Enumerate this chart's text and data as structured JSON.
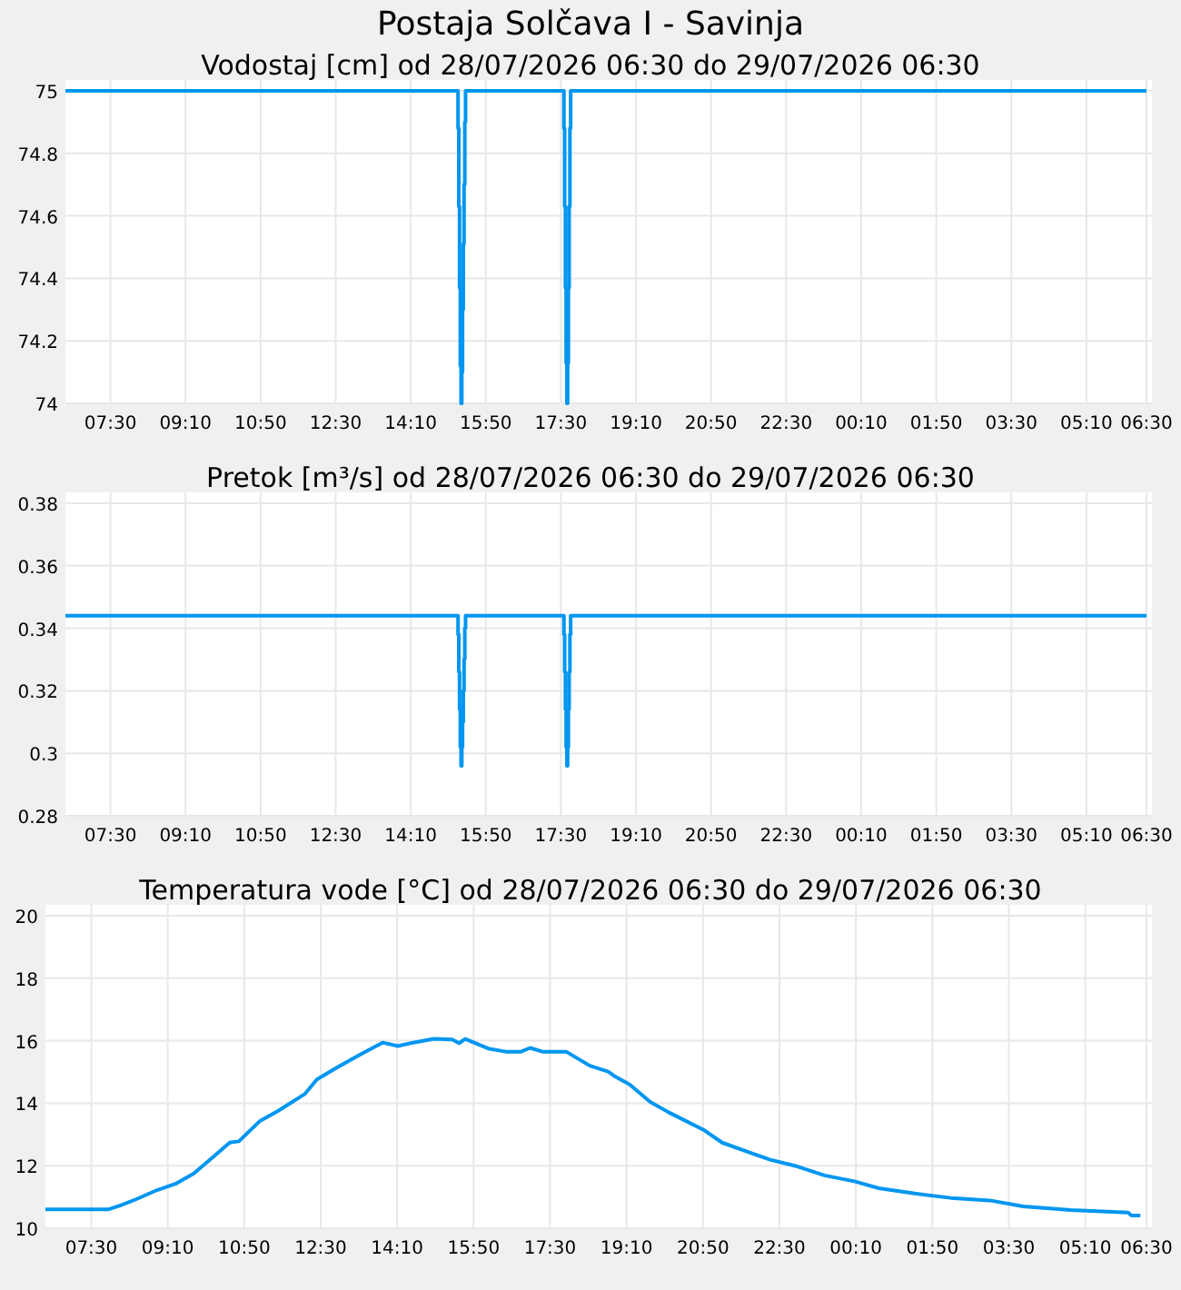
{
  "chart_data": [
    {
      "type": "step",
      "title": "Postaja Solčava I - Savinja",
      "subtitle": "Vodostaj [cm] od 28/07/2026 06:30 do 29/07/2026 06:30",
      "color": "#0096f0",
      "grid": true,
      "xlim": [
        "2026-07-28T06:30",
        "2026-07-29T06:30"
      ],
      "xticks": [
        {
          "value": "2026-07-28T07:30",
          "label": "07:30"
        },
        {
          "value": "2026-07-28T09:10",
          "label": "09:10"
        },
        {
          "value": "2026-07-28T10:50",
          "label": "10:50"
        },
        {
          "value": "2026-07-28T12:30",
          "label": "12:30"
        },
        {
          "value": "2026-07-28T14:10",
          "label": "14:10"
        },
        {
          "value": "2026-07-28T15:50",
          "label": "15:50"
        },
        {
          "value": "2026-07-28T17:30",
          "label": "17:30"
        },
        {
          "value": "2026-07-28T19:10",
          "label": "19:10"
        },
        {
          "value": "2026-07-28T20:50",
          "label": "20:50"
        },
        {
          "value": "2026-07-28T22:30",
          "label": "22:30"
        },
        {
          "value": "2026-07-29T00:10",
          "label": "00:10"
        },
        {
          "value": "2026-07-29T01:50",
          "label": "01:50"
        },
        {
          "value": "2026-07-29T03:30",
          "label": "03:30"
        },
        {
          "value": "2026-07-29T05:10",
          "label": "05:10"
        },
        {
          "value": "2026-07-29T06:30",
          "label": "06:30"
        }
      ],
      "ylim": [
        74,
        75
      ],
      "yticks": [
        74,
        74.2,
        74.4,
        74.6,
        74.8,
        75
      ],
      "x": [
        "2026-07-28T06:30",
        "2026-07-28T15:13",
        "2026-07-28T15:14",
        "2026-07-28T15:15",
        "2026-07-28T15:16",
        "2026-07-28T15:17",
        "2026-07-28T15:18",
        "2026-07-28T15:19",
        "2026-07-28T15:20",
        "2026-07-28T15:21",
        "2026-07-28T15:22",
        "2026-07-28T15:23",
        "2026-07-28T17:34",
        "2026-07-28T17:35",
        "2026-07-28T17:36",
        "2026-07-28T17:37",
        "2026-07-28T17:38",
        "2026-07-28T17:39",
        "2026-07-28T17:40",
        "2026-07-28T17:41",
        "2026-07-28T17:42",
        "2026-07-28T17:43",
        "2026-07-29T06:30"
      ],
      "values": [
        75,
        74.88,
        74.63,
        74.37,
        74.12,
        74.0,
        74.1,
        74.3,
        74.51,
        74.7,
        74.9,
        75,
        74.88,
        74.63,
        74.37,
        74.13,
        74.0,
        74.13,
        74.37,
        74.63,
        74.88,
        75,
        75
      ]
    },
    {
      "type": "step",
      "title": "Pretok [m³/s] od 28/07/2026 06:30 do 29/07/2026 06:30",
      "color": "#0096f0",
      "grid": true,
      "xlim": [
        "2026-07-28T06:30",
        "2026-07-29T06:30"
      ],
      "xticks": [
        {
          "value": "2026-07-28T07:30",
          "label": "07:30"
        },
        {
          "value": "2026-07-28T09:10",
          "label": "09:10"
        },
        {
          "value": "2026-07-28T10:50",
          "label": "10:50"
        },
        {
          "value": "2026-07-28T12:30",
          "label": "12:30"
        },
        {
          "value": "2026-07-28T14:10",
          "label": "14:10"
        },
        {
          "value": "2026-07-28T15:50",
          "label": "15:50"
        },
        {
          "value": "2026-07-28T17:30",
          "label": "17:30"
        },
        {
          "value": "2026-07-28T19:10",
          "label": "19:10"
        },
        {
          "value": "2026-07-28T20:50",
          "label": "20:50"
        },
        {
          "value": "2026-07-28T22:30",
          "label": "22:30"
        },
        {
          "value": "2026-07-29T00:10",
          "label": "00:10"
        },
        {
          "value": "2026-07-29T01:50",
          "label": "01:50"
        },
        {
          "value": "2026-07-29T03:30",
          "label": "03:30"
        },
        {
          "value": "2026-07-29T05:10",
          "label": "05:10"
        },
        {
          "value": "2026-07-29T06:30",
          "label": "06:30"
        }
      ],
      "ylim": [
        0.28,
        0.38
      ],
      "yticks": [
        0.28,
        0.3,
        0.32,
        0.34,
        0.36,
        0.38
      ],
      "x": [
        "2026-07-28T06:30",
        "2026-07-28T15:13",
        "2026-07-28T15:14",
        "2026-07-28T15:15",
        "2026-07-28T15:16",
        "2026-07-28T15:17",
        "2026-07-28T15:18",
        "2026-07-28T15:19",
        "2026-07-28T15:20",
        "2026-07-28T15:21",
        "2026-07-28T15:22",
        "2026-07-28T15:23",
        "2026-07-28T17:34",
        "2026-07-28T17:35",
        "2026-07-28T17:36",
        "2026-07-28T17:37",
        "2026-07-28T17:38",
        "2026-07-28T17:39",
        "2026-07-28T17:40",
        "2026-07-28T17:41",
        "2026-07-28T17:42",
        "2026-07-28T17:43",
        "2026-07-29T06:30"
      ],
      "values": [
        0.344,
        0.338,
        0.326,
        0.314,
        0.302,
        0.296,
        0.302,
        0.31,
        0.32,
        0.33,
        0.34,
        0.344,
        0.338,
        0.326,
        0.314,
        0.302,
        0.296,
        0.302,
        0.314,
        0.326,
        0.338,
        0.344,
        0.344
      ]
    },
    {
      "type": "line",
      "title": "Temperatura vode [°C] od 28/07/2026 06:30 do 29/07/2026 06:30",
      "color": "#0096f0",
      "grid": true,
      "xlim": [
        "2026-07-28T06:30",
        "2026-07-29T06:30"
      ],
      "xticks": [
        {
          "value": "2026-07-28T07:30",
          "label": "07:30"
        },
        {
          "value": "2026-07-28T09:10",
          "label": "09:10"
        },
        {
          "value": "2026-07-28T10:50",
          "label": "10:50"
        },
        {
          "value": "2026-07-28T12:30",
          "label": "12:30"
        },
        {
          "value": "2026-07-28T14:10",
          "label": "14:10"
        },
        {
          "value": "2026-07-28T15:50",
          "label": "15:50"
        },
        {
          "value": "2026-07-28T17:30",
          "label": "17:30"
        },
        {
          "value": "2026-07-28T19:10",
          "label": "19:10"
        },
        {
          "value": "2026-07-28T20:50",
          "label": "20:50"
        },
        {
          "value": "2026-07-28T22:30",
          "label": "22:30"
        },
        {
          "value": "2026-07-29T00:10",
          "label": "00:10"
        },
        {
          "value": "2026-07-29T01:50",
          "label": "01:50"
        },
        {
          "value": "2026-07-29T03:30",
          "label": "03:30"
        },
        {
          "value": "2026-07-29T05:10",
          "label": "05:10"
        },
        {
          "value": "2026-07-29T06:30",
          "label": "06:30"
        }
      ],
      "ylim": [
        10,
        20
      ],
      "yticks": [
        10,
        12,
        14,
        16,
        18,
        20
      ],
      "x": [
        "2026-07-28T06:30",
        "2026-07-28T07:52",
        "2026-07-28T08:09",
        "2026-07-28T08:29",
        "2026-07-28T08:56",
        "2026-07-28T09:20",
        "2026-07-28T09:44",
        "2026-07-28T10:07",
        "2026-07-28T10:31",
        "2026-07-28T10:43",
        "2026-07-28T11:10",
        "2026-07-28T11:34",
        "2026-07-28T12:09",
        "2026-07-28T12:25",
        "2026-07-28T12:52",
        "2026-07-28T13:24",
        "2026-07-28T13:51",
        "2026-07-28T14:11",
        "2026-07-28T14:31",
        "2026-07-28T14:58",
        "2026-07-28T15:22",
        "2026-07-28T15:31",
        "2026-07-28T15:39",
        "2026-07-28T16:09",
        "2026-07-28T16:32",
        "2026-07-28T16:52",
        "2026-07-28T17:04",
        "2026-07-28T17:20",
        "2026-07-28T17:51",
        "2026-07-28T18:22",
        "2026-07-28T18:46",
        "2026-07-28T18:54",
        "2026-07-28T19:14",
        "2026-07-28T19:41",
        "2026-07-28T20:05",
        "2026-07-28T20:52",
        "2026-07-28T21:15",
        "2026-07-28T21:55",
        "2026-07-28T22:18",
        "2026-07-28T22:50",
        "2026-07-28T23:29",
        "2026-07-29T00:08",
        "2026-07-29T00:40",
        "2026-07-29T01:27",
        "2026-07-29T02:14",
        "2026-07-29T03:05",
        "2026-07-29T03:49",
        "2026-07-29T04:51",
        "2026-07-29T06:06",
        "2026-07-29T06:10",
        "2026-07-29T06:22"
      ],
      "values": [
        10.6,
        10.6,
        10.74,
        10.93,
        11.22,
        11.42,
        11.75,
        12.23,
        12.74,
        12.78,
        13.42,
        13.75,
        14.29,
        14.76,
        15.15,
        15.59,
        15.94,
        15.83,
        15.94,
        16.06,
        16.04,
        15.92,
        16.06,
        15.75,
        15.65,
        15.65,
        15.77,
        15.65,
        15.65,
        15.2,
        15.01,
        14.87,
        14.6,
        14.04,
        13.71,
        13.13,
        12.74,
        12.39,
        12.19,
        12.0,
        11.69,
        11.5,
        11.28,
        11.11,
        10.97,
        10.89,
        10.7,
        10.58,
        10.5,
        10.41,
        10.41
      ]
    }
  ]
}
